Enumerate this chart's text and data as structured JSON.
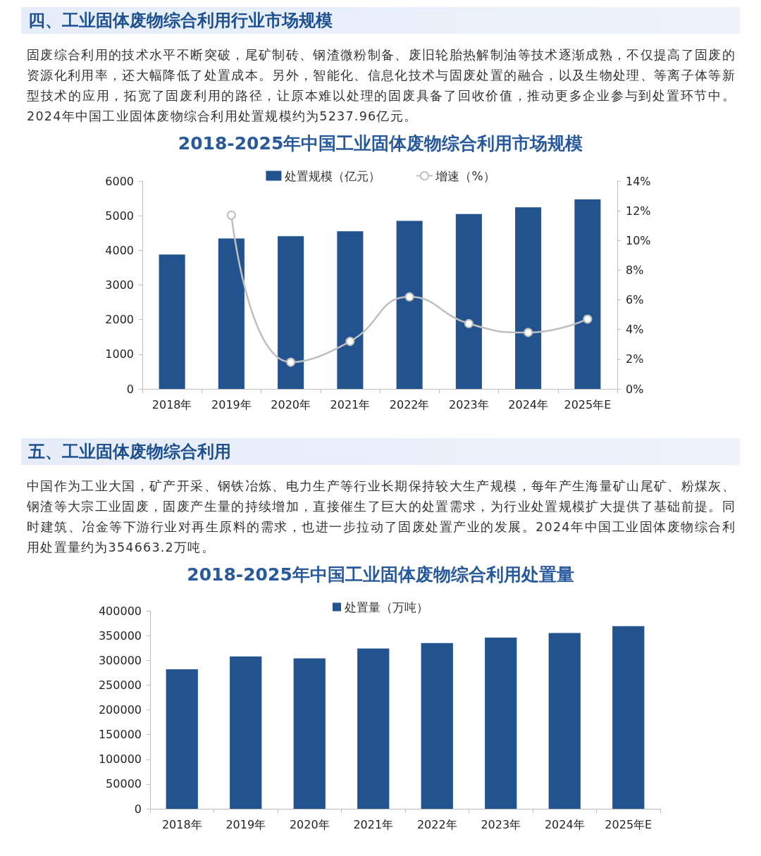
{
  "chart_data": [
    {
      "type": "bar",
      "title": "2018-2025年中国工业固体废物综合利用市场规模",
      "annotations": [
        "四、工业固体废物综合利用行业市场规模",
        "固废综合利用的技术水平不断突破，尾矿制砖、钢渣微粉制备、废旧轮胎热解制油等技术逐渐成熟，不仅提高了固废的资源化利用率，还大幅降低了处置成本。另外，智能化、信息化技术与固废处置的融合，以及生物处理、等离子体等新型技术的应用，拓宽了固废利用的路径，让原本难以处理的固废具备了回收价值，推动更多企业参与到处置环节中。2024年中国工业固体废物综合利用处置规模约为5237.96亿元。"
      ],
      "categories": [
        "2018年",
        "2019年",
        "2020年",
        "2021年",
        "2022年",
        "2023年",
        "2024年",
        "2025年E"
      ],
      "series": [
        {
          "name": "处置规模（亿元）",
          "color": "#23538f",
          "values": [
            3880,
            4340,
            4410,
            4550,
            4850,
            5050,
            5240,
            5470
          ]
        },
        {
          "name": "增速（%）",
          "type": "line",
          "axis": "y2",
          "color": "#bfbfbf",
          "values": [
            null,
            11.7,
            1.8,
            3.2,
            6.2,
            4.4,
            3.8,
            4.7
          ]
        }
      ],
      "ylim": [
        0,
        6000
      ],
      "yticks": [
        0,
        1000,
        2000,
        3000,
        4000,
        5000,
        6000
      ],
      "y2lim": [
        0,
        14
      ],
      "y2ticks": [
        {
          "value": 0,
          "label": "0%"
        },
        {
          "value": 2,
          "label": "2%"
        },
        {
          "value": 4,
          "label": "4%"
        },
        {
          "value": 6,
          "label": "6%"
        },
        {
          "value": 8,
          "label": "8%"
        },
        {
          "value": 10,
          "label": "10%"
        },
        {
          "value": 12,
          "label": "12%"
        },
        {
          "value": 14,
          "label": "14%"
        }
      ],
      "legend": "top",
      "marker": "circle"
    },
    {
      "type": "bar",
      "title": "2018-2025年中国工业固体废物综合利用处置量",
      "annotations": [
        "五、工业固体废物综合利用",
        "中国作为工业大国，矿产开采、钢铁冶炼、电力生产等行业长期保持较大生产规模，每年产生海量矿山尾矿、粉煤灰、钢渣等大宗工业固废，固废产生量的持续增加，直接催生了巨大的处置需求，为行业处置规模扩大提供了基础前提。同时建筑、冶金等下游行业对再生原料的需求，也进一步拉动了固废处置产业的发展。2024年中国工业固体废物综合利用处置量约为354663.2万吨。"
      ],
      "categories": [
        "2018年",
        "2019年",
        "2020年",
        "2021年",
        "2022年",
        "2023年",
        "2024年",
        "2025年E"
      ],
      "series": [
        {
          "name": "处置量（万吨）",
          "color": "#23538f",
          "values": [
            282000,
            308000,
            304000,
            324000,
            335000,
            346000,
            355000,
            369000
          ]
        }
      ],
      "ylim": [
        0,
        400000
      ],
      "yticks": [
        0,
        50000,
        100000,
        150000,
        200000,
        250000,
        300000,
        350000,
        400000
      ],
      "legend": "top"
    }
  ]
}
